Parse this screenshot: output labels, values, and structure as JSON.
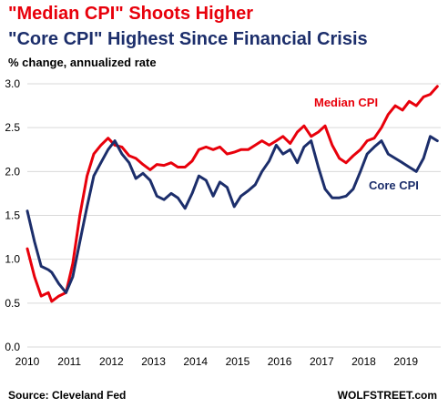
{
  "chart_data": {
    "type": "line",
    "title": "\"Median CPI\" Shoots Higher",
    "subtitle": "\"Core CPI\" Highest Since Financial Crisis",
    "ylabel": "% change, annualized rate",
    "ylim": [
      0,
      3.0
    ],
    "yticks": [
      "0.0",
      "0.5",
      "1.0",
      "1.5",
      "2.0",
      "2.5",
      "3.0"
    ],
    "xlim": [
      2010,
      2019.83
    ],
    "xticks": [
      "2010",
      "2011",
      "2012",
      "2013",
      "2014",
      "2015",
      "2016",
      "2017",
      "2018",
      "2019"
    ],
    "grid": true,
    "series": [
      {
        "name": "Median CPI",
        "color": "#e8000b",
        "x": [
          2010,
          2010.17,
          2010.33,
          2010.5,
          2010.58,
          2010.75,
          2010.92,
          2011.08,
          2011.25,
          2011.42,
          2011.58,
          2011.75,
          2011.92,
          2012.08,
          2012.25,
          2012.42,
          2012.58,
          2012.75,
          2012.92,
          2013.08,
          2013.25,
          2013.42,
          2013.58,
          2013.75,
          2013.92,
          2014.08,
          2014.25,
          2014.42,
          2014.58,
          2014.75,
          2014.92,
          2015.08,
          2015.25,
          2015.42,
          2015.58,
          2015.75,
          2015.92,
          2016.08,
          2016.25,
          2016.42,
          2016.58,
          2016.75,
          2016.92,
          2017.08,
          2017.25,
          2017.42,
          2017.58,
          2017.75,
          2017.92,
          2018.08,
          2018.25,
          2018.42,
          2018.58,
          2018.75,
          2018.92,
          2019.08,
          2019.25,
          2019.42,
          2019.58,
          2019.75
        ],
        "values": [
          1.12,
          0.8,
          0.58,
          0.62,
          0.52,
          0.58,
          0.62,
          0.95,
          1.5,
          1.95,
          2.2,
          2.3,
          2.38,
          2.3,
          2.28,
          2.18,
          2.15,
          2.08,
          2.02,
          2.08,
          2.07,
          2.1,
          2.05,
          2.05,
          2.12,
          2.25,
          2.28,
          2.25,
          2.28,
          2.2,
          2.22,
          2.25,
          2.25,
          2.3,
          2.35,
          2.3,
          2.35,
          2.4,
          2.32,
          2.45,
          2.52,
          2.4,
          2.45,
          2.52,
          2.3,
          2.15,
          2.1,
          2.18,
          2.25,
          2.35,
          2.38,
          2.5,
          2.65,
          2.75,
          2.7,
          2.8,
          2.75,
          2.85,
          2.88,
          2.97
        ]
      },
      {
        "name": "Core CPI",
        "color": "#1c2e6b",
        "x": [
          2010,
          2010.17,
          2010.33,
          2010.5,
          2010.58,
          2010.75,
          2010.92,
          2011.08,
          2011.25,
          2011.42,
          2011.58,
          2011.75,
          2011.92,
          2012.08,
          2012.25,
          2012.42,
          2012.58,
          2012.75,
          2012.92,
          2013.08,
          2013.25,
          2013.42,
          2013.58,
          2013.75,
          2013.92,
          2014.08,
          2014.25,
          2014.42,
          2014.58,
          2014.75,
          2014.92,
          2015.08,
          2015.25,
          2015.42,
          2015.58,
          2015.75,
          2015.92,
          2016.08,
          2016.25,
          2016.42,
          2016.58,
          2016.75,
          2016.92,
          2017.08,
          2017.25,
          2017.42,
          2017.58,
          2017.75,
          2017.92,
          2018.08,
          2018.25,
          2018.42,
          2018.58,
          2018.75,
          2018.92,
          2019.08,
          2019.25,
          2019.42,
          2019.58,
          2019.75
        ],
        "values": [
          1.55,
          1.2,
          0.92,
          0.88,
          0.85,
          0.72,
          0.62,
          0.8,
          1.2,
          1.6,
          1.95,
          2.1,
          2.25,
          2.35,
          2.2,
          2.1,
          1.92,
          1.98,
          1.9,
          1.72,
          1.68,
          1.75,
          1.7,
          1.58,
          1.75,
          1.95,
          1.9,
          1.72,
          1.88,
          1.82,
          1.6,
          1.72,
          1.78,
          1.85,
          2.0,
          2.12,
          2.3,
          2.2,
          2.25,
          2.1,
          2.28,
          2.35,
          2.05,
          1.8,
          1.7,
          1.7,
          1.72,
          1.8,
          2.0,
          2.2,
          2.28,
          2.35,
          2.2,
          2.15,
          2.1,
          2.05,
          2.0,
          2.15,
          2.4,
          2.35
        ]
      }
    ],
    "annotations": {
      "median_label": "Median CPI",
      "core_label": "Core CPI"
    },
    "source": "Source: Cleveland Fed",
    "credit": "WOLFSTREET.com"
  }
}
